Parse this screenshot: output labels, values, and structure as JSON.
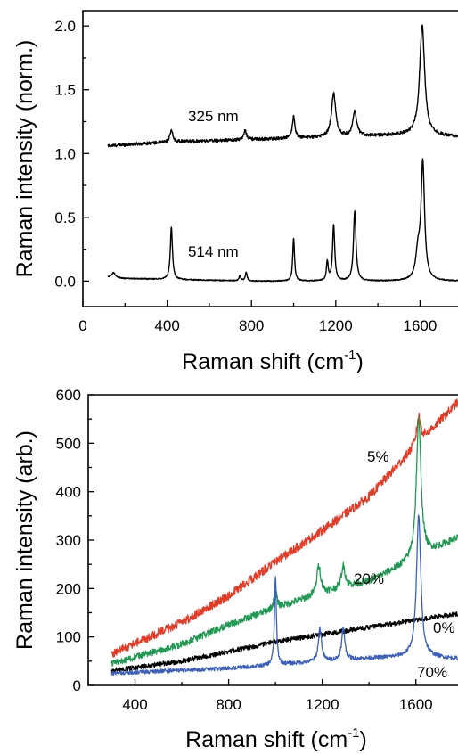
{
  "chart_data": [
    {
      "type": "line",
      "xlabel": "Raman shift (cm",
      "xlabel_sup": "-1",
      "xlabel_close": ")",
      "ylabel": "Raman intensity (norm.)",
      "xlim": [
        0,
        1780
      ],
      "ylim": [
        -0.2,
        2.12
      ],
      "xticks": [
        0,
        400,
        800,
        1200,
        1600
      ],
      "yticks": [
        0.0,
        0.5,
        1.0,
        1.5,
        2.0
      ],
      "ytick_labels": [
        "0.0",
        "0.5",
        "1.0",
        "1.5",
        "2.0"
      ],
      "grid": false,
      "series": [
        {
          "name": "325 nm",
          "color": "#000000",
          "range": [
            120,
            1780
          ],
          "baseline": [
            [
              120,
              1.06
            ],
            [
              400,
              1.09
            ],
            [
              800,
              1.11
            ],
            [
              1200,
              1.13
            ],
            [
              1600,
              1.15
            ],
            [
              1780,
              1.13
            ]
          ],
          "peaks": [
            [
              420,
              0.09,
              8
            ],
            [
              770,
              0.07,
              8
            ],
            [
              1000,
              0.17,
              7
            ],
            [
              1190,
              0.34,
              12
            ],
            [
              1290,
              0.19,
              11
            ],
            [
              1610,
              0.86,
              14
            ]
          ],
          "noise": 0.012
        },
        {
          "name": "514 nm",
          "color": "#000000",
          "range": [
            120,
            1780
          ],
          "baseline": [
            [
              120,
              0.03
            ],
            [
              200,
              0.02
            ],
            [
              800,
              0.0
            ],
            [
              1200,
              0.0
            ],
            [
              1780,
              0.0
            ]
          ],
          "peaks": [
            [
              145,
              0.04,
              10
            ],
            [
              420,
              0.41,
              6
            ],
            [
              745,
              0.04,
              5
            ],
            [
              775,
              0.07,
              5
            ],
            [
              1000,
              0.34,
              5
            ],
            [
              1160,
              0.15,
              5
            ],
            [
              1190,
              0.44,
              6
            ],
            [
              1290,
              0.55,
              7
            ],
            [
              1590,
              0.2,
              12
            ],
            [
              1613,
              0.92,
              10
            ]
          ],
          "noise": 0.004
        }
      ]
    },
    {
      "type": "line",
      "xlabel": "Raman shift (cm",
      "xlabel_sup": "-1",
      "xlabel_close": ")",
      "ylabel": "Raman intensity (arb.)",
      "xlim": [
        200,
        1780
      ],
      "ylim": [
        0,
        600
      ],
      "xticks": [
        400,
        800,
        1200,
        1600
      ],
      "yticks": [
        0,
        100,
        200,
        300,
        400,
        500,
        600
      ],
      "ytick_labels": [
        "0",
        "100",
        "200",
        "300",
        "400",
        "500",
        "600"
      ],
      "grid": false,
      "series": [
        {
          "name": "5%",
          "color": "#e53a26",
          "range": [
            300,
            1780
          ],
          "baseline": [
            [
              300,
              65
            ],
            [
              600,
              130
            ],
            [
              800,
              185
            ],
            [
              1000,
              255
            ],
            [
              1200,
              320
            ],
            [
              1400,
              390
            ],
            [
              1600,
              495
            ],
            [
              1780,
              585
            ]
          ],
          "peaks": [
            [
              1612,
              55,
              10
            ]
          ],
          "noise": 9
        },
        {
          "name": "20%",
          "color": "#1f9a53",
          "range": [
            300,
            1780
          ],
          "baseline": [
            [
              300,
              45
            ],
            [
              600,
              85
            ],
            [
              800,
              125
            ],
            [
              1000,
              160
            ],
            [
              1200,
              190
            ],
            [
              1400,
              215
            ],
            [
              1600,
              260
            ],
            [
              1780,
              305
            ]
          ],
          "peaks": [
            [
              1000,
              45,
              6
            ],
            [
              1185,
              60,
              10
            ],
            [
              1290,
              45,
              10
            ],
            [
              1612,
              285,
              12
            ]
          ],
          "noise": 7
        },
        {
          "name": "0%",
          "color": "#000000",
          "range": [
            300,
            1780
          ],
          "baseline": [
            [
              300,
              30
            ],
            [
              600,
              50
            ],
            [
              800,
              70
            ],
            [
              1000,
              90
            ],
            [
              1200,
              105
            ],
            [
              1400,
              120
            ],
            [
              1600,
              135
            ],
            [
              1780,
              148
            ]
          ],
          "peaks": [],
          "noise": 5
        },
        {
          "name": "70%",
          "color": "#3a5fc0",
          "range": [
            300,
            1780
          ],
          "baseline": [
            [
              300,
              25
            ],
            [
              800,
              35
            ],
            [
              1000,
              42
            ],
            [
              1200,
              50
            ],
            [
              1400,
              56
            ],
            [
              1600,
              60
            ],
            [
              1780,
              55
            ]
          ],
          "peaks": [
            [
              1000,
              180,
              5
            ],
            [
              1190,
              68,
              8
            ],
            [
              1290,
              65,
              8
            ],
            [
              1612,
              290,
              11
            ]
          ],
          "noise": 4
        }
      ]
    }
  ]
}
